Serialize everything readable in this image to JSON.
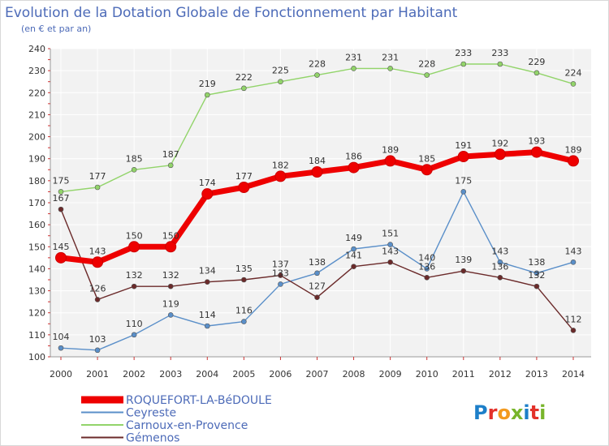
{
  "chart_data": {
    "type": "line",
    "title": "Evolution de la Dotation Globale de Fonctionnement par Habitant",
    "subtitle": "(en € et par an)",
    "xlabel": "",
    "ylabel": "",
    "x": [
      "2000",
      "2001",
      "2002",
      "2003",
      "2004",
      "2005",
      "2006",
      "2007",
      "2008",
      "2009",
      "2010",
      "2011",
      "2012",
      "2013",
      "2014"
    ],
    "ylim": [
      100,
      240
    ],
    "yticks": [
      100,
      110,
      120,
      130,
      140,
      150,
      160,
      170,
      180,
      190,
      200,
      210,
      220,
      230,
      240
    ],
    "grid": true,
    "legend_position": "bottom-left",
    "series": [
      {
        "name": "Carnoux-en-Provence",
        "color": "#92d46a",
        "values": [
          175,
          177,
          185,
          187,
          219,
          222,
          225,
          228,
          231,
          231,
          228,
          233,
          233,
          229,
          224
        ]
      },
      {
        "name": "Ceyreste",
        "color": "#5a8fc9",
        "values": [
          104,
          103,
          110,
          119,
          114,
          116,
          133,
          138,
          149,
          151,
          140,
          175,
          143,
          138,
          143
        ]
      },
      {
        "name": "Gémenos",
        "color": "#6b2a2a",
        "values": [
          167,
          126,
          132,
          132,
          134,
          135,
          137,
          127,
          141,
          143,
          136,
          139,
          136,
          132,
          112
        ]
      },
      {
        "name": "ROQUEFORT-LA-BéDOULE",
        "color": "#ee0000",
        "values": [
          145,
          143,
          150,
          150,
          174,
          177,
          182,
          184,
          186,
          189,
          185,
          191,
          192,
          193,
          189
        ],
        "emphasis": true
      }
    ]
  },
  "legend": [
    {
      "label": "ROQUEFORT-LA-BéDOULE",
      "color": "#ee0000"
    },
    {
      "label": "Ceyreste",
      "color": "#5a8fc9"
    },
    {
      "label": "Carnoux-en-Provence",
      "color": "#92d46a"
    },
    {
      "label": "Gémenos",
      "color": "#6b2a2a"
    }
  ],
  "logo": {
    "text": "Proxiti"
  }
}
